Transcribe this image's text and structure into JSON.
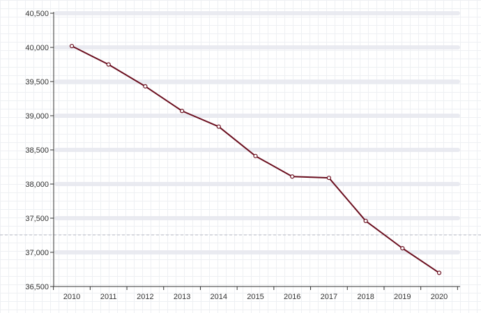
{
  "chart_data": {
    "type": "line",
    "title": "",
    "xlabel": "",
    "ylabel": "",
    "categories": [
      "2010",
      "2011",
      "2012",
      "2013",
      "2014",
      "2015",
      "2016",
      "2017",
      "2018",
      "2019",
      "2020"
    ],
    "series": [
      {
        "values": [
          40020,
          39750,
          39430,
          39070,
          38840,
          38410,
          38110,
          38090,
          37460,
          37060,
          36700
        ]
      }
    ],
    "ylim": [
      36500,
      40500
    ],
    "yticks": [
      36500,
      37000,
      37500,
      38000,
      38500,
      39000,
      39500,
      40000,
      40500
    ],
    "ytick_labels": [
      "36,500",
      "37,000",
      "37,500",
      "38,000",
      "38,500",
      "39,000",
      "39,500",
      "40,000",
      "40,500"
    ],
    "grid": true,
    "colors": {
      "line": "#6b0f1f",
      "band": "#e6e8ee",
      "axis": "#333333"
    }
  }
}
